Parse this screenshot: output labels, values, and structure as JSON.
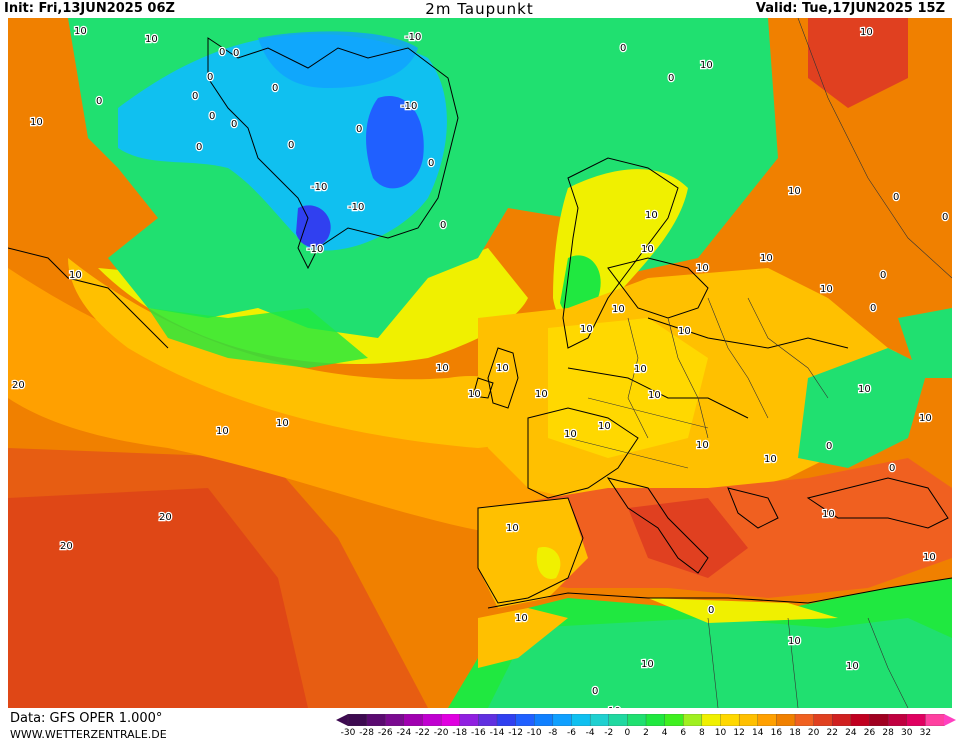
{
  "header": {
    "init": "Init: Fri,13JUN2025 06Z",
    "title": "2m Taupunkt",
    "valid": "Valid: Tue,17JUN2025 15Z"
  },
  "footer": {
    "data_source": "Data: GFS OPER 1.000°",
    "website": "WWW.WETTERZENTRALE.DE"
  },
  "legend": {
    "ticks": [
      "-30",
      "-28",
      "-26",
      "-24",
      "-22",
      "-20",
      "-18",
      "-16",
      "-14",
      "-12",
      "-10",
      "-8",
      "-6",
      "-4",
      "-2",
      "0",
      "2",
      "4",
      "6",
      "8",
      "10",
      "12",
      "14",
      "16",
      "18",
      "20",
      "22",
      "24",
      "26",
      "28",
      "30",
      "32"
    ],
    "colors": [
      "#3d0a50",
      "#5a0a70",
      "#7a0a90",
      "#a000b0",
      "#c000d0",
      "#e000e0",
      "#9020e0",
      "#6030e0",
      "#3040f0",
      "#2060ff",
      "#1080ff",
      "#10a0ff",
      "#10c0f0",
      "#20d0d0",
      "#20d8a0",
      "#20e070",
      "#20e840",
      "#40f020",
      "#a0f020",
      "#f0f000",
      "#ffd800",
      "#ffc000",
      "#ffa000",
      "#f08000",
      "#f06020",
      "#e04020",
      "#d02020",
      "#c00020",
      "#a00020",
      "#c00040",
      "#e00060",
      "#ff40a0"
    ],
    "left_arrow_color": "#3d0a50",
    "right_arrow_color": "#ff40c0"
  },
  "map_labels": [
    "10",
    "10",
    "0",
    "-10",
    "0",
    "0",
    "0",
    "0",
    "0",
    "0",
    "-10",
    "-10",
    "-10",
    "-10",
    "0",
    "0",
    "0",
    "0",
    "0",
    "0",
    "0",
    "0",
    "10",
    "10",
    "10",
    "20",
    "10",
    "10",
    "10",
    "10",
    "10",
    "10",
    "10",
    "10",
    "10",
    "10",
    "20",
    "20",
    "10",
    "10",
    "10",
    "10",
    "10",
    "10",
    "10",
    "10",
    "10",
    "10",
    "10",
    "10",
    "10",
    "10",
    "10",
    "0",
    "0",
    "0",
    "0",
    "0",
    "0",
    "0",
    "0",
    "10",
    "10",
    "10",
    "10",
    "10",
    "10",
    "10"
  ],
  "colors": {
    "ocean_sw": "#f08000",
    "ocean_s": "#f06020",
    "atlantic_mid": "#ffc000",
    "atlantic_n": "#f0f000",
    "greenland_sea": "#20e070",
    "greenland_ice": "#10c0f0",
    "greenland_core": "#2060ff",
    "europe": "#ffd800",
    "med": "#f06020",
    "africa": "#20e840",
    "arctic": "#20e070"
  }
}
